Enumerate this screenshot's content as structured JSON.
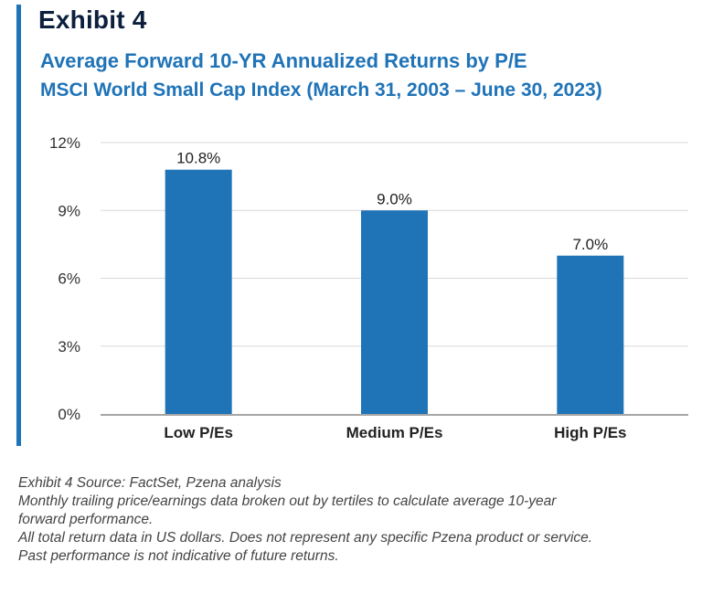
{
  "header": {
    "exhibit": "Exhibit 4"
  },
  "chart_data": {
    "type": "bar",
    "title": "Average Forward 10-YR Annualized Returns by P/E",
    "subtitle": "MSCI World Small Cap Index (March 31, 2003 – June 30, 2023)",
    "categories": [
      "Low P/Es",
      "Medium P/Es",
      "High P/Es"
    ],
    "values": [
      10.8,
      9.0,
      7.0
    ],
    "data_labels": [
      "10.8%",
      "9.0%",
      "7.0%"
    ],
    "y_ticks": [
      0,
      3,
      6,
      9,
      12
    ],
    "y_tick_labels": [
      "0%",
      "3%",
      "6%",
      "9%",
      "12%"
    ],
    "ylim": [
      0,
      12
    ],
    "xlabel": "",
    "ylabel": "",
    "grid": true,
    "legend": "none",
    "bar_color": "#1f73b7"
  },
  "footnotes": {
    "source": "Exhibit 4 Source: FactSet, Pzena analysis",
    "note1_line1": "Monthly trailing price/earnings data broken out by tertiles to calculate average 10-year",
    "note1_line2": "forward performance.",
    "note2": "All total return data in US dollars. Does not represent any specific Pzena product or service.",
    "note3": "Past performance is not indicative of future returns."
  }
}
